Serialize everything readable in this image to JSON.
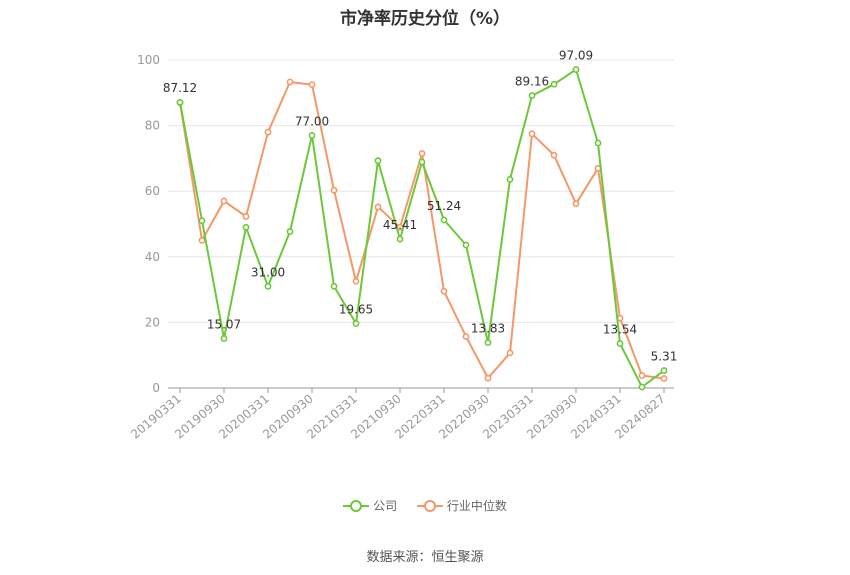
{
  "title": "市净率历史分位（%）",
  "source": "数据来源：恒生聚源",
  "legend": [
    {
      "name": "公司",
      "color": "#6cc83a"
    },
    {
      "name": "行业中位数",
      "color": "#f59868"
    }
  ],
  "chart_data": {
    "type": "line",
    "title": "市净率历史分位（%）",
    "ylim": [
      0,
      100
    ],
    "yticks": [
      0,
      20,
      40,
      60,
      80,
      100
    ],
    "grid": true,
    "legend_position": "bottom",
    "x": [
      "20190331",
      "20190630",
      "20190930",
      "20191231",
      "20200331",
      "20200630",
      "20200930",
      "20201231",
      "20210331",
      "20210630",
      "20210930",
      "20211231",
      "20220331",
      "20220630",
      "20220930",
      "20221231",
      "20230331",
      "20230630",
      "20230930",
      "20231231",
      "20240331",
      "20240630",
      "20240827"
    ],
    "xtick_labels": [
      "20190331",
      "20190930",
      "20200331",
      "20200930",
      "20210331",
      "20210930",
      "20220331",
      "20220930",
      "20230331",
      "20230930",
      "20240331",
      "20240827"
    ],
    "series": [
      {
        "name": "公司",
        "color": "#6cc83a",
        "values": [
          87.12,
          51.0,
          15.07,
          49.0,
          31.0,
          47.7,
          77.0,
          31.0,
          19.65,
          69.3,
          45.41,
          68.9,
          51.24,
          43.6,
          13.83,
          63.6,
          89.16,
          92.6,
          97.09,
          74.7,
          13.54,
          0.3,
          5.31
        ],
        "labels": [
          "87.12",
          "",
          "15.07",
          "",
          "31.00",
          "",
          "77.00",
          "",
          "19.65",
          "",
          "45.41",
          "",
          "51.24",
          "",
          "13.83",
          "",
          "89.16",
          "",
          "97.09",
          "",
          "13.54",
          "",
          "5.31"
        ]
      },
      {
        "name": "行业中位数",
        "color": "#f59868",
        "values": [
          87.0,
          45.0,
          57.0,
          52.3,
          78.0,
          93.3,
          92.5,
          60.3,
          32.5,
          55.2,
          49.0,
          71.5,
          29.5,
          15.7,
          3.0,
          10.7,
          77.5,
          71.0,
          56.2,
          67.0,
          21.3,
          3.8,
          2.9
        ]
      }
    ]
  }
}
